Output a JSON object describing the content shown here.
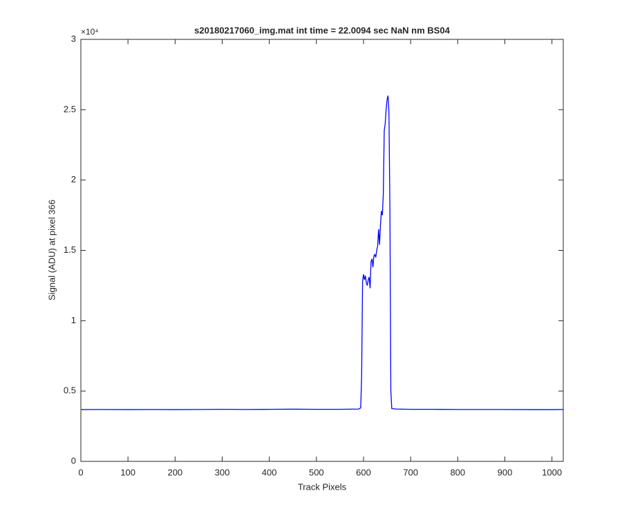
{
  "chart_data": {
    "type": "line",
    "title": "s20180217060_img.mat int time = 22.0094 sec  NaN nm BS04",
    "x_label": "Track Pixels",
    "y_label": "Signal (ADU) at pixel 366",
    "y_multiplier": "×10⁴",
    "xlim": [
      0,
      1024
    ],
    "xticks": [
      0,
      100,
      200,
      300,
      400,
      500,
      600,
      700,
      800,
      900,
      1000
    ],
    "ylim": [
      0,
      30000
    ],
    "yticks": [
      0,
      {
        "value": 5000,
        "label": "0.5"
      },
      {
        "value": 10000,
        "label": "1"
      },
      {
        "value": 15000,
        "label": "1.5"
      },
      {
        "value": 20000,
        "label": "2"
      },
      {
        "value": 25000,
        "label": "2.5"
      },
      {
        "value": 30000,
        "label": "3"
      }
    ],
    "grid": false,
    "series": [
      {
        "color": "#0000ff",
        "x": [
          1,
          50,
          100,
          150,
          200,
          250,
          300,
          350,
          400,
          450,
          500,
          550,
          590,
          594,
          596,
          598,
          600,
          602,
          604,
          606,
          608,
          610,
          612,
          614,
          616,
          618,
          620,
          622,
          624,
          626,
          628,
          630,
          632,
          634,
          636,
          638,
          640,
          642,
          644,
          646,
          648,
          650,
          652,
          654,
          656,
          658,
          660,
          670,
          700,
          750,
          800,
          850,
          900,
          950,
          1000,
          1024
        ],
        "values": [
          3680,
          3690,
          3680,
          3690,
          3680,
          3690,
          3700,
          3690,
          3700,
          3710,
          3700,
          3700,
          3720,
          3800,
          6000,
          12800,
          13300,
          12900,
          13200,
          12700,
          12500,
          12900,
          13100,
          12300,
          14200,
          14400,
          13800,
          14600,
          14700,
          14500,
          15000,
          15300,
          16500,
          15400,
          16800,
          17800,
          17500,
          19000,
          23500,
          24000,
          25000,
          25700,
          26000,
          24800,
          18000,
          5000,
          3750,
          3720,
          3700,
          3700,
          3690,
          3690,
          3690,
          3680,
          3680,
          3690
        ]
      }
    ]
  }
}
